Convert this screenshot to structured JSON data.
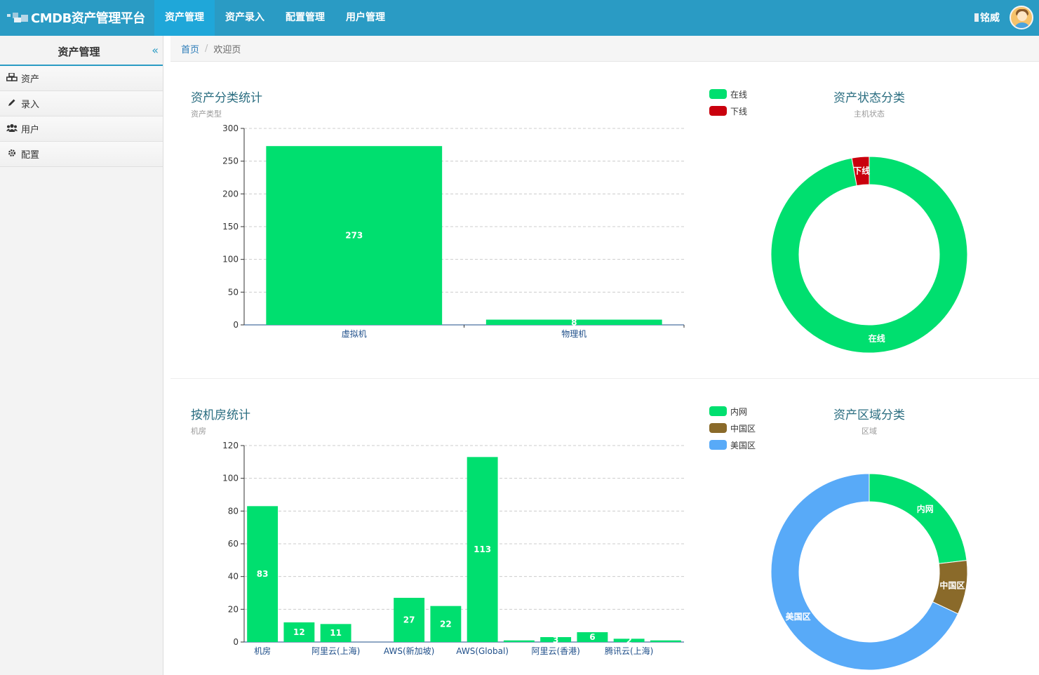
{
  "app": {
    "title": "CMDB资产管理平台"
  },
  "nav": {
    "items": [
      "资产管理",
      "资产录入",
      "配置管理",
      "用户管理"
    ],
    "active_index": 0
  },
  "user": {
    "name": "铭威"
  },
  "sidebar": {
    "title": "资产管理",
    "items": [
      {
        "label": "资产",
        "icon": "cubes-icon"
      },
      {
        "label": "录入",
        "icon": "pencil-icon"
      },
      {
        "label": "用户",
        "icon": "users-icon"
      },
      {
        "label": "配置",
        "icon": "gear-icon"
      }
    ]
  },
  "breadcrumb": {
    "home": "首页",
    "separator": "/",
    "current": "欢迎页"
  },
  "colors": {
    "green": "#00df6f",
    "red": "#c9000d",
    "brown": "#8a6a2a",
    "blue": "#58aaf8",
    "primary": "#2a9bc4"
  },
  "charts": {
    "asset_type": {
      "title": "资产分类统计",
      "subtitle": "资产类型",
      "chart_data": {
        "type": "bar",
        "categories": [
          "虚拟机",
          "物理机"
        ],
        "values": [
          273,
          8
        ],
        "ylim": [
          0,
          300
        ],
        "yticks": [
          0,
          50,
          100,
          150,
          200,
          250,
          300
        ],
        "grid": true
      }
    },
    "asset_status": {
      "title": "资产状态分类",
      "subtitle": "主机状态",
      "chart_data": {
        "type": "pie",
        "donut": true,
        "labels": [
          "在线",
          "下线"
        ],
        "values": [
          273,
          8
        ],
        "colors": [
          "#00df6f",
          "#c9000d"
        ],
        "legend": "top-left"
      }
    },
    "datacenter": {
      "title": "按机房统计",
      "subtitle": "机房",
      "chart_data": {
        "type": "bar",
        "categories": [
          "机房",
          "",
          "阿里云(上海)",
          "",
          "AWS(新加坡)",
          "",
          "AWS(Global)",
          "",
          "阿里云(香港)",
          "",
          "腾讯云(上海)",
          ""
        ],
        "values": [
          83,
          12,
          11,
          0,
          27,
          22,
          113,
          1,
          3,
          6,
          2,
          1
        ],
        "labels": [
          "83",
          "12",
          "11",
          "",
          "27",
          "22",
          "113",
          "",
          "3",
          "6",
          "2",
          ""
        ],
        "ylim": [
          0,
          120
        ],
        "yticks": [
          0,
          20,
          40,
          60,
          80,
          100,
          120
        ],
        "grid": true
      }
    },
    "region": {
      "title": "资产区域分类",
      "subtitle": "区域",
      "chart_data": {
        "type": "pie",
        "donut": true,
        "labels": [
          "内网",
          "中国区",
          "美国区"
        ],
        "values": [
          65,
          25,
          191
        ],
        "colors": [
          "#00df6f",
          "#8a6a2a",
          "#58aaf8"
        ],
        "legend": "top-left"
      }
    }
  }
}
